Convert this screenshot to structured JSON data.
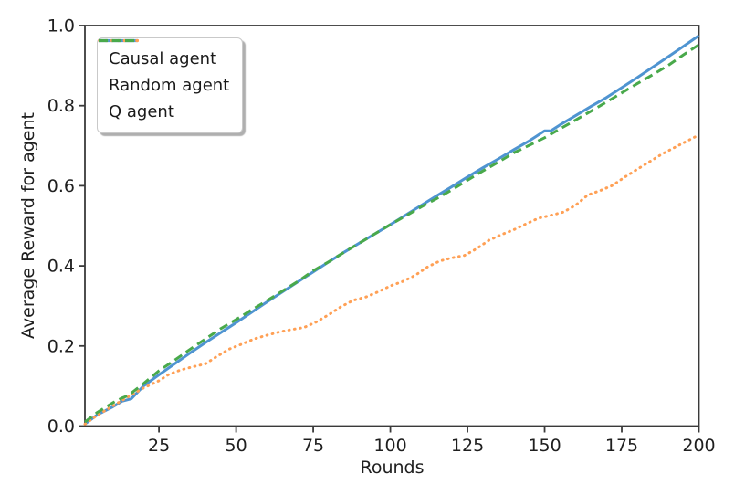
{
  "chart_data": {
    "type": "line",
    "title": "",
    "xlabel": "Rounds",
    "ylabel": "Average Reward for agent",
    "xlim": [
      1,
      200
    ],
    "ylim": [
      0.0,
      1.0
    ],
    "x_ticks": [
      25,
      50,
      75,
      100,
      125,
      150,
      175,
      200
    ],
    "x_tick_labels": [
      "25",
      "50",
      "75",
      "100",
      "125",
      "150",
      "175",
      "200"
    ],
    "y_ticks": [
      0.0,
      0.2,
      0.4,
      0.6,
      0.8,
      1.0
    ],
    "y_tick_labels": [
      "0.0",
      "0.2",
      "0.4",
      "0.6",
      "0.8",
      "1.0"
    ],
    "grid": false,
    "legend_position": "upper left",
    "legend_style": "fancybox-with-shadow",
    "series": [
      {
        "name": "Causal agent",
        "color": "#4f94d1",
        "line_style": "solid",
        "x": [
          1,
          5,
          10,
          13,
          16,
          20,
          25,
          30,
          35,
          40,
          45,
          50,
          55,
          60,
          65,
          70,
          75,
          80,
          85,
          90,
          95,
          100,
          105,
          110,
          115,
          120,
          125,
          130,
          135,
          140,
          145,
          147,
          150,
          152,
          155,
          160,
          165,
          170,
          175,
          180,
          185,
          190,
          195,
          200
        ],
        "y": [
          0.005,
          0.028,
          0.048,
          0.062,
          0.068,
          0.1,
          0.128,
          0.155,
          0.182,
          0.208,
          0.233,
          0.258,
          0.284,
          0.31,
          0.335,
          0.36,
          0.385,
          0.41,
          0.434,
          0.457,
          0.48,
          0.503,
          0.527,
          0.551,
          0.575,
          0.598,
          0.622,
          0.645,
          0.667,
          0.69,
          0.712,
          0.722,
          0.737,
          0.737,
          0.752,
          0.775,
          0.798,
          0.82,
          0.845,
          0.87,
          0.896,
          0.922,
          0.948,
          0.975
        ]
      },
      {
        "name": "Random agent",
        "color": "#ffa055",
        "line_style": "dotted",
        "x": [
          1,
          5,
          10,
          15,
          20,
          25,
          28,
          32,
          36,
          40,
          44,
          48,
          52,
          56,
          60,
          64,
          68,
          72,
          76,
          80,
          84,
          88,
          92,
          96,
          100,
          104,
          108,
          112,
          116,
          120,
          124,
          128,
          132,
          136,
          140,
          144,
          148,
          152,
          156,
          160,
          164,
          168,
          172,
          176,
          180,
          184,
          188,
          192,
          196,
          200
        ],
        "y": [
          0.005,
          0.027,
          0.05,
          0.073,
          0.095,
          0.113,
          0.128,
          0.14,
          0.148,
          0.155,
          0.175,
          0.193,
          0.205,
          0.218,
          0.227,
          0.235,
          0.241,
          0.246,
          0.26,
          0.278,
          0.298,
          0.314,
          0.322,
          0.335,
          0.35,
          0.361,
          0.376,
          0.397,
          0.412,
          0.42,
          0.426,
          0.443,
          0.464,
          0.478,
          0.49,
          0.505,
          0.519,
          0.526,
          0.534,
          0.551,
          0.577,
          0.588,
          0.601,
          0.622,
          0.641,
          0.66,
          0.679,
          0.695,
          0.711,
          0.727
        ]
      },
      {
        "name": "Q agent",
        "color": "#49a94b",
        "line_style": "dashed",
        "x": [
          1,
          5,
          10,
          13,
          15,
          20,
          25,
          30,
          35,
          40,
          45,
          50,
          55,
          60,
          65,
          70,
          75,
          80,
          85,
          90,
          95,
          100,
          105,
          110,
          115,
          120,
          125,
          130,
          135,
          140,
          145,
          150,
          155,
          160,
          165,
          170,
          175,
          180,
          185,
          190,
          195,
          200
        ],
        "y": [
          0.01,
          0.034,
          0.058,
          0.07,
          0.076,
          0.106,
          0.138,
          0.164,
          0.191,
          0.217,
          0.243,
          0.266,
          0.29,
          0.313,
          0.337,
          0.361,
          0.388,
          0.41,
          0.434,
          0.457,
          0.48,
          0.503,
          0.525,
          0.547,
          0.568,
          0.59,
          0.614,
          0.637,
          0.659,
          0.682,
          0.701,
          0.72,
          0.742,
          0.764,
          0.786,
          0.809,
          0.832,
          0.855,
          0.877,
          0.9,
          0.927,
          0.952
        ]
      }
    ]
  }
}
